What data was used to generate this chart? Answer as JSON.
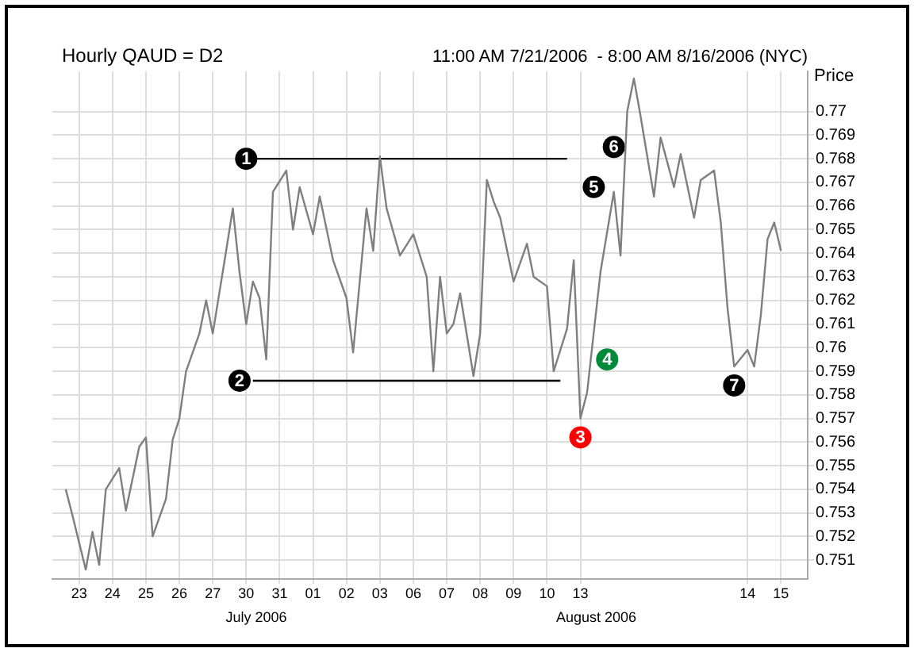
{
  "chart_data": {
    "type": "line",
    "title": "Hourly QAUD = D2",
    "subtitle": "11:00 AM 7/21/2006  - 8:00 AM 8/16/2006 (NYC)",
    "ylabel": "Price",
    "annotations": [
      "July 2006",
      "August 2006"
    ],
    "categories": [
      null,
      null,
      null,
      null,
      "23",
      null,
      null,
      null,
      null,
      "24",
      null,
      null,
      null,
      null,
      "25",
      null,
      null,
      null,
      null,
      "26",
      null,
      null,
      null,
      null,
      "27",
      null,
      null,
      null,
      null,
      "30",
      null,
      null,
      null,
      null,
      "31",
      null,
      null,
      null,
      null,
      "01",
      null,
      null,
      null,
      null,
      "02",
      null,
      null,
      null,
      null,
      "03",
      null,
      null,
      null,
      null,
      "06",
      null,
      null,
      null,
      null,
      "07",
      null,
      null,
      null,
      null,
      "08",
      null,
      null,
      null,
      null,
      "09",
      null,
      null,
      null,
      null,
      "10",
      null,
      null,
      null,
      null,
      "13",
      null,
      null,
      null,
      null,
      null,
      null,
      null,
      null,
      null,
      null,
      null,
      null,
      null,
      null,
      null,
      null,
      null,
      null,
      null,
      null,
      null,
      null,
      null,
      null,
      "14",
      null,
      null,
      null,
      null,
      "15",
      null,
      null,
      null,
      null
    ],
    "ylim": [
      0.7502,
      0.7717
    ],
    "yticks": [
      0.751,
      0.752,
      0.753,
      0.754,
      0.755,
      0.756,
      0.757,
      0.758,
      0.759,
      0.76,
      0.761,
      0.762,
      0.763,
      0.764,
      0.765,
      0.766,
      0.767,
      0.768,
      0.769,
      0.77
    ],
    "grid": true,
    "legend": false,
    "series": [
      {
        "type": "line",
        "color": "#7f7f7f",
        "values": [
          null,
          null,
          0.754,
          0.7529,
          null,
          0.7506,
          0.7522,
          0.7508,
          0.754,
          null,
          0.7549,
          0.7531,
          null,
          0.7558,
          0.7562,
          0.752,
          null,
          0.7536,
          0.7561,
          0.757,
          0.759,
          null,
          0.7606,
          0.762,
          0.7606,
          null,
          0.7641,
          0.7659,
          0.7632,
          0.761,
          0.7628,
          0.7621,
          0.7595,
          0.7666,
          null,
          0.7675,
          0.765,
          0.7668,
          null,
          0.7648,
          0.7664,
          null,
          0.7637,
          null,
          0.7621,
          0.7598,
          null,
          0.7659,
          0.7641,
          0.7681,
          0.7659,
          null,
          0.7639,
          null,
          0.7648,
          null,
          0.763,
          0.759,
          0.763,
          0.7606,
          0.761,
          0.7623,
          null,
          0.7588,
          0.7606,
          0.7671,
          0.7662,
          0.7655,
          null,
          0.7628,
          null,
          0.7644,
          0.763,
          null,
          0.7626,
          0.759,
          null,
          0.7608,
          0.7637,
          0.757,
          0.7581,
          null,
          0.7632,
          null,
          0.7666,
          0.7639,
          0.77,
          0.7714,
          0.7698,
          null,
          0.7664,
          0.7689,
          null,
          0.7668,
          0.7682,
          null,
          0.7655,
          0.7671,
          null,
          0.7675,
          0.7653,
          0.7617,
          0.7592,
          null,
          0.7599,
          0.7592,
          0.7614,
          0.7646,
          0.7653,
          0.7641,
          null,
          null,
          null,
          null
        ]
      },
      {
        "type": "line",
        "color": "#000000",
        "values": [
          null,
          null,
          null,
          null,
          null,
          null,
          null,
          null,
          null,
          null,
          null,
          null,
          null,
          null,
          null,
          null,
          null,
          null,
          null,
          null,
          null,
          null,
          null,
          null,
          null,
          null,
          null,
          null,
          null,
          null,
          0.768,
          0.768,
          0.768,
          0.768,
          0.768,
          0.768,
          0.768,
          0.768,
          0.768,
          0.768,
          0.768,
          0.768,
          0.768,
          0.768,
          0.768,
          0.768,
          0.768,
          0.768,
          0.768,
          0.768,
          0.768,
          0.768,
          0.768,
          0.768,
          0.768,
          0.768,
          0.768,
          0.768,
          0.768,
          0.768,
          0.768,
          0.768,
          0.768,
          0.768,
          0.768,
          0.768,
          0.768,
          0.768,
          0.768,
          0.768,
          0.768,
          0.768,
          0.768,
          0.768,
          0.768,
          0.768,
          0.768,
          0.768,
          null,
          null,
          null,
          null,
          null,
          null,
          null,
          null,
          null,
          null,
          null,
          null,
          null,
          null,
          null,
          null,
          null,
          null,
          null,
          null,
          null,
          null,
          null,
          null,
          null,
          null,
          null,
          null,
          null,
          null,
          null,
          null,
          null,
          null,
          null,
          null
        ]
      },
      {
        "type": "line",
        "color": "#000000",
        "values": [
          null,
          null,
          null,
          null,
          null,
          null,
          null,
          null,
          null,
          null,
          null,
          null,
          null,
          null,
          null,
          null,
          null,
          null,
          null,
          null,
          null,
          null,
          null,
          null,
          null,
          null,
          null,
          null,
          null,
          null,
          0.7586,
          0.7586,
          0.7586,
          0.7586,
          0.7586,
          0.7586,
          0.7586,
          0.7586,
          0.7586,
          0.7586,
          0.7586,
          0.7586,
          0.7586,
          0.7586,
          0.7586,
          0.7586,
          0.7586,
          0.7586,
          0.7586,
          0.7586,
          0.7586,
          0.7586,
          0.7586,
          0.7586,
          0.7586,
          0.7586,
          0.7586,
          0.7586,
          0.7586,
          0.7586,
          0.7586,
          0.7586,
          0.7586,
          0.7586,
          0.7586,
          0.7586,
          0.7586,
          0.7586,
          0.7586,
          0.7586,
          0.7586,
          0.7586,
          0.7586,
          0.7586,
          0.7586,
          0.7586,
          0.7586,
          null,
          null,
          null,
          null,
          null,
          null,
          null,
          null,
          null,
          null,
          null,
          null,
          null,
          null,
          null,
          null,
          null,
          null,
          null,
          null,
          null,
          null,
          null,
          null,
          null,
          null,
          null,
          null,
          null,
          null,
          null,
          null,
          null,
          null,
          null,
          null,
          null
        ]
      },
      {
        "type": "scatter",
        "name": "1",
        "color": "#000000",
        "values": [
          null,
          null,
          null,
          null,
          null,
          null,
          null,
          null,
          null,
          null,
          null,
          null,
          null,
          null,
          null,
          null,
          null,
          null,
          null,
          null,
          null,
          null,
          null,
          null,
          null,
          null,
          null,
          null,
          null,
          0.768,
          null,
          null,
          null,
          null,
          null,
          null,
          null,
          null,
          null,
          null,
          null,
          null,
          null,
          null,
          null,
          null,
          null,
          null,
          null,
          null,
          null,
          null,
          null,
          null,
          null,
          null,
          null,
          null,
          null,
          null,
          null,
          null,
          null,
          null,
          null,
          null,
          null,
          null,
          null,
          null,
          null,
          null,
          null,
          null,
          null,
          null,
          null,
          null,
          null,
          null,
          null,
          null,
          null,
          null,
          null,
          null,
          null,
          null,
          null,
          null,
          null,
          null,
          null,
          null,
          null,
          null,
          null,
          null,
          null,
          null,
          null,
          null,
          null,
          null,
          null,
          null,
          null,
          null,
          null,
          null,
          null,
          null,
          null,
          null
        ]
      },
      {
        "type": "scatter",
        "name": "2",
        "color": "#000000",
        "values": [
          null,
          null,
          null,
          null,
          null,
          null,
          null,
          null,
          null,
          null,
          null,
          null,
          null,
          null,
          null,
          null,
          null,
          null,
          null,
          null,
          null,
          null,
          null,
          null,
          null,
          null,
          null,
          null,
          0.7586,
          null,
          null,
          null,
          null,
          null,
          null,
          null,
          null,
          null,
          null,
          null,
          null,
          null,
          null,
          null,
          null,
          null,
          null,
          null,
          null,
          null,
          null,
          null,
          null,
          null,
          null,
          null,
          null,
          null,
          null,
          null,
          null,
          null,
          null,
          null,
          null,
          null,
          null,
          null,
          null,
          null,
          null,
          null,
          null,
          null,
          null,
          null,
          null,
          null,
          null,
          null,
          null,
          null,
          null,
          null,
          null,
          null,
          null,
          null,
          null,
          null,
          null,
          null,
          null,
          null,
          null,
          null,
          null,
          null,
          null,
          null,
          null,
          null,
          null,
          null,
          null,
          null,
          null,
          null,
          null,
          null,
          null,
          null,
          null,
          null
        ]
      },
      {
        "type": "scatter",
        "name": "3",
        "color": "#ff0000",
        "values": [
          null,
          null,
          null,
          null,
          null,
          null,
          null,
          null,
          null,
          null,
          null,
          null,
          null,
          null,
          null,
          null,
          null,
          null,
          null,
          null,
          null,
          null,
          null,
          null,
          null,
          null,
          null,
          null,
          null,
          null,
          null,
          null,
          null,
          null,
          null,
          null,
          null,
          null,
          null,
          null,
          null,
          null,
          null,
          null,
          null,
          null,
          null,
          null,
          null,
          null,
          null,
          null,
          null,
          null,
          null,
          null,
          null,
          null,
          null,
          null,
          null,
          null,
          null,
          null,
          null,
          null,
          null,
          null,
          null,
          null,
          null,
          null,
          null,
          null,
          null,
          null,
          null,
          null,
          null,
          0.7562,
          null,
          null,
          null,
          null,
          null,
          null,
          null,
          null,
          null,
          null,
          null,
          null,
          null,
          null,
          null,
          null,
          null,
          null,
          null,
          null,
          null,
          null,
          null,
          null,
          null,
          null,
          null,
          null,
          null,
          null,
          null,
          null,
          null,
          null
        ]
      },
      {
        "type": "scatter",
        "name": "4",
        "color": "#008a3a",
        "values": [
          null,
          null,
          null,
          null,
          null,
          null,
          null,
          null,
          null,
          null,
          null,
          null,
          null,
          null,
          null,
          null,
          null,
          null,
          null,
          null,
          null,
          null,
          null,
          null,
          null,
          null,
          null,
          null,
          null,
          null,
          null,
          null,
          null,
          null,
          null,
          null,
          null,
          null,
          null,
          null,
          null,
          null,
          null,
          null,
          null,
          null,
          null,
          null,
          null,
          null,
          null,
          null,
          null,
          null,
          null,
          null,
          null,
          null,
          null,
          null,
          null,
          null,
          null,
          null,
          null,
          null,
          null,
          null,
          null,
          null,
          null,
          null,
          null,
          null,
          null,
          null,
          null,
          null,
          null,
          null,
          null,
          null,
          null,
          0.7595,
          null,
          null,
          null,
          null,
          null,
          null,
          null,
          null,
          null,
          null,
          null,
          null,
          null,
          null,
          null,
          null,
          null,
          null,
          null,
          null,
          null,
          null,
          null,
          null,
          null,
          null,
          null,
          null,
          null,
          null
        ]
      },
      {
        "type": "scatter",
        "name": "5",
        "color": "#000000",
        "values": [
          null,
          null,
          null,
          null,
          null,
          null,
          null,
          null,
          null,
          null,
          null,
          null,
          null,
          null,
          null,
          null,
          null,
          null,
          null,
          null,
          null,
          null,
          null,
          null,
          null,
          null,
          null,
          null,
          null,
          null,
          null,
          null,
          null,
          null,
          null,
          null,
          null,
          null,
          null,
          null,
          null,
          null,
          null,
          null,
          null,
          null,
          null,
          null,
          null,
          null,
          null,
          null,
          null,
          null,
          null,
          null,
          null,
          null,
          null,
          null,
          null,
          null,
          null,
          null,
          null,
          null,
          null,
          null,
          null,
          null,
          null,
          null,
          null,
          null,
          null,
          null,
          null,
          null,
          null,
          null,
          null,
          0.7668,
          null,
          null,
          null,
          null,
          null,
          null,
          null,
          null,
          null,
          null,
          null,
          null,
          null,
          null,
          null,
          null,
          null,
          null,
          null,
          null,
          null,
          null,
          null,
          null,
          null,
          null,
          null,
          null,
          null,
          null,
          null,
          null
        ]
      },
      {
        "type": "scatter",
        "name": "6",
        "color": "#000000",
        "values": [
          null,
          null,
          null,
          null,
          null,
          null,
          null,
          null,
          null,
          null,
          null,
          null,
          null,
          null,
          null,
          null,
          null,
          null,
          null,
          null,
          null,
          null,
          null,
          null,
          null,
          null,
          null,
          null,
          null,
          null,
          null,
          null,
          null,
          null,
          null,
          null,
          null,
          null,
          null,
          null,
          null,
          null,
          null,
          null,
          null,
          null,
          null,
          null,
          null,
          null,
          null,
          null,
          null,
          null,
          null,
          null,
          null,
          null,
          null,
          null,
          null,
          null,
          null,
          null,
          null,
          null,
          null,
          null,
          null,
          null,
          null,
          null,
          null,
          null,
          null,
          null,
          null,
          null,
          null,
          null,
          null,
          null,
          null,
          null,
          0.7685,
          null,
          null,
          null,
          null,
          null,
          null,
          null,
          null,
          null,
          null,
          null,
          null,
          null,
          null,
          null,
          null,
          null,
          null,
          null,
          null,
          null,
          null,
          null,
          null,
          null,
          null,
          null,
          null,
          null
        ]
      },
      {
        "type": "scatter",
        "name": "7",
        "color": "#000000",
        "values": [
          null,
          null,
          null,
          null,
          null,
          null,
          null,
          null,
          null,
          null,
          null,
          null,
          null,
          null,
          null,
          null,
          null,
          null,
          null,
          null,
          null,
          null,
          null,
          null,
          null,
          null,
          null,
          null,
          null,
          null,
          null,
          null,
          null,
          null,
          null,
          null,
          null,
          null,
          null,
          null,
          null,
          null,
          null,
          null,
          null,
          null,
          null,
          null,
          null,
          null,
          null,
          null,
          null,
          null,
          null,
          null,
          null,
          null,
          null,
          null,
          null,
          null,
          null,
          null,
          null,
          null,
          null,
          null,
          null,
          null,
          null,
          null,
          null,
          null,
          null,
          null,
          null,
          null,
          null,
          null,
          null,
          null,
          null,
          null,
          null,
          null,
          null,
          null,
          null,
          null,
          null,
          null,
          null,
          null,
          null,
          null,
          null,
          null,
          null,
          null,
          null,
          null,
          0.7584,
          null,
          null,
          null,
          null,
          null,
          null,
          null,
          null,
          null,
          null,
          null
        ]
      }
    ]
  }
}
